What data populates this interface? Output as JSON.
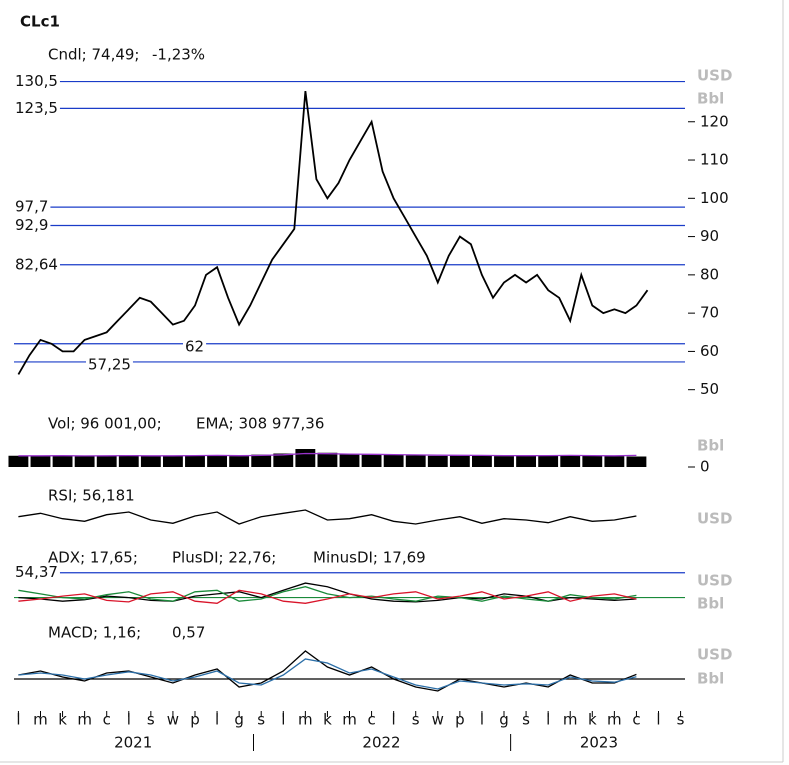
{
  "title": "CLc1",
  "xaxis": {
    "xlim": [
      -0.2,
      30.2
    ],
    "xticks": [
      {
        "value": 0,
        "label": "l"
      },
      {
        "value": 1,
        "label": "m"
      },
      {
        "value": 2,
        "label": "k"
      },
      {
        "value": 3,
        "label": "m"
      },
      {
        "value": 4,
        "label": "c"
      },
      {
        "value": 5,
        "label": "l"
      },
      {
        "value": 6,
        "label": "s"
      },
      {
        "value": 7,
        "label": "w"
      },
      {
        "value": 8,
        "label": "p"
      },
      {
        "value": 9,
        "label": "l"
      },
      {
        "value": 10,
        "label": "g"
      },
      {
        "value": 11,
        "label": "s"
      },
      {
        "value": 12,
        "label": "l"
      },
      {
        "value": 13,
        "label": "m"
      },
      {
        "value": 14,
        "label": "k"
      },
      {
        "value": 15,
        "label": "m"
      },
      {
        "value": 16,
        "label": "c"
      },
      {
        "value": 17,
        "label": "l"
      },
      {
        "value": 18,
        "label": "s"
      },
      {
        "value": 19,
        "label": "w"
      },
      {
        "value": 20,
        "label": "p"
      },
      {
        "value": 21,
        "label": "l"
      },
      {
        "value": 22,
        "label": "g"
      },
      {
        "value": 23,
        "label": "s"
      },
      {
        "value": 24,
        "label": "l"
      },
      {
        "value": 25,
        "label": "m"
      },
      {
        "value": 26,
        "label": "k"
      },
      {
        "value": 27,
        "label": "m"
      },
      {
        "value": 28,
        "label": "c"
      },
      {
        "value": 29,
        "label": "l"
      },
      {
        "value": 30,
        "label": "s"
      }
    ],
    "years": [
      {
        "value": 5.2,
        "label": "2021"
      },
      {
        "value": 16.45,
        "label": "2022"
      },
      {
        "value": 26.3,
        "label": "2023"
      }
    ],
    "separators": [
      10.65,
      22.3
    ]
  },
  "chart_data": [
    {
      "type": "line",
      "units": [
        "USD",
        "Bbl"
      ],
      "change_label": "-1,23%",
      "ylim": [
        46,
        133
      ],
      "yticks": [
        50,
        60,
        70,
        80,
        90,
        100,
        110,
        120
      ],
      "levels": [
        {
          "value": 130.5,
          "label": "130,5"
        },
        {
          "value": 123.5,
          "label": "123,5"
        },
        {
          "value": 97.7,
          "label": "97,7"
        },
        {
          "value": 92.9,
          "label": "92,9"
        },
        {
          "value": 82.64,
          "label": "82,64"
        },
        {
          "value": 62,
          "label": "62"
        },
        {
          "value": 57.25,
          "label": "57,25"
        }
      ],
      "level_color": "#1a3cc8",
      "x": [
        0,
        0.5,
        1,
        1.5,
        2,
        2.5,
        3,
        3.5,
        4,
        4.5,
        5,
        5.5,
        6,
        6.5,
        7,
        7.5,
        8,
        8.5,
        9,
        9.5,
        10,
        10.5,
        11,
        11.5,
        12,
        12.5,
        13,
        13.5,
        14,
        14.5,
        15,
        15.5,
        16,
        16.5,
        17,
        17.5,
        18,
        18.5,
        19,
        19.5,
        20,
        20.5,
        21,
        21.5,
        22,
        22.5,
        23,
        23.5,
        24,
        24.5,
        25,
        25.5,
        26,
        26.5,
        27,
        27.5,
        28,
        28.5
      ],
      "series": [
        {
          "name": "Cndl; 74,49;",
          "color": "#000000",
          "values": [
            54,
            59,
            63,
            62,
            60,
            60,
            63,
            64,
            65,
            68,
            71,
            74,
            73,
            70,
            67,
            68,
            72,
            80,
            82,
            74,
            67,
            72,
            78,
            84,
            88,
            92,
            128,
            105,
            100,
            104,
            110,
            115,
            120,
            107,
            100,
            95,
            90,
            85,
            78,
            85,
            90,
            88,
            80,
            74,
            78,
            80,
            78,
            80,
            76,
            74,
            68,
            80,
            72,
            70,
            71,
            70,
            72,
            76
          ]
        }
      ]
    },
    {
      "type": "bar",
      "units": [
        "Bbl"
      ],
      "ylim": [
        0,
        800000
      ],
      "yticks": [
        0
      ],
      "x": [
        0,
        1,
        2,
        3,
        4,
        5,
        6,
        7,
        8,
        9,
        10,
        11,
        12,
        13,
        14,
        15,
        16,
        17,
        18,
        19,
        20,
        21,
        22,
        23,
        24,
        25,
        26,
        27,
        28
      ],
      "series": [
        {
          "name": "Vol; 96 001,00;",
          "color": "#000000",
          "values": [
            300000,
            290000,
            310000,
            280000,
            300000,
            320000,
            290000,
            300000,
            310000,
            320000,
            290000,
            330000,
            360000,
            480000,
            380000,
            340000,
            330000,
            320000,
            310000,
            300000,
            310000,
            300000,
            290000,
            300000,
            310000,
            320000,
            300000,
            290000,
            280000
          ]
        },
        {
          "name": "EMA; 308 977,36",
          "color": "#9933cc",
          "style": "line",
          "values": [
            300000,
            298000,
            302000,
            295000,
            298000,
            305000,
            300000,
            300000,
            304000,
            308000,
            302000,
            310000,
            325000,
            360000,
            355000,
            345000,
            338000,
            330000,
            322000,
            315000,
            313000,
            309000,
            303000,
            302000,
            304000,
            308000,
            305000,
            300000,
            309000
          ]
        }
      ]
    },
    {
      "type": "line",
      "units": [
        "USD"
      ],
      "ylim": [
        20,
        80
      ],
      "yticks": [],
      "x": [
        0,
        1,
        2,
        3,
        4,
        5,
        6,
        7,
        8,
        9,
        10,
        11,
        12,
        13,
        14,
        15,
        16,
        17,
        18,
        19,
        20,
        21,
        22,
        23,
        24,
        25,
        26,
        27,
        28
      ],
      "series": [
        {
          "name": "RSI; 56,181",
          "color": "#000000",
          "values": [
            55,
            60,
            52,
            48,
            58,
            62,
            50,
            45,
            56,
            62,
            44,
            55,
            60,
            65,
            50,
            52,
            58,
            48,
            44,
            50,
            55,
            45,
            52,
            50,
            46,
            55,
            48,
            50,
            56
          ]
        }
      ]
    },
    {
      "type": "line",
      "units": [
        "USD",
        "Bbl"
      ],
      "ylim": [
        0,
        72
      ],
      "yticks": [],
      "levels": [
        {
          "value": 54.37,
          "label": "54,37"
        }
      ],
      "level_color": "#1a3cc8",
      "reference_line": 20,
      "reference_color": "#1a8a3a",
      "x": [
        0,
        1,
        2,
        3,
        4,
        5,
        6,
        7,
        8,
        9,
        10,
        11,
        12,
        13,
        14,
        15,
        16,
        17,
        18,
        19,
        20,
        21,
        22,
        23,
        24,
        25,
        26,
        27,
        28
      ],
      "series": [
        {
          "name": "ADX; 17,65;",
          "color": "#000000",
          "values": [
            20,
            18,
            15,
            17,
            22,
            20,
            16,
            15,
            22,
            25,
            28,
            20,
            30,
            40,
            35,
            25,
            18,
            15,
            14,
            16,
            20,
            18,
            25,
            22,
            15,
            20,
            18,
            16,
            18
          ]
        },
        {
          "name": "PlusDI; 22,76;",
          "color": "#1a8a3a",
          "values": [
            30,
            25,
            20,
            18,
            24,
            28,
            18,
            15,
            28,
            30,
            15,
            18,
            28,
            35,
            25,
            20,
            22,
            18,
            15,
            22,
            20,
            15,
            22,
            18,
            15,
            24,
            20,
            18,
            23
          ]
        },
        {
          "name": "MinusDI; 17,69",
          "color": "#d9142a",
          "values": [
            15,
            18,
            22,
            25,
            16,
            14,
            25,
            28,
            15,
            12,
            30,
            25,
            15,
            12,
            18,
            25,
            20,
            25,
            28,
            18,
            22,
            28,
            18,
            22,
            28,
            15,
            22,
            25,
            18
          ]
        }
      ]
    },
    {
      "type": "line",
      "units": [
        "USD",
        "Bbl"
      ],
      "ylim": [
        -4,
        9
      ],
      "yticks": [],
      "reference_line": 0,
      "reference_color": "#000000",
      "x": [
        0,
        1,
        2,
        3,
        4,
        5,
        6,
        7,
        8,
        9,
        10,
        11,
        12,
        13,
        14,
        15,
        16,
        17,
        18,
        19,
        20,
        21,
        22,
        23,
        24,
        25,
        26,
        27,
        28
      ],
      "series": [
        {
          "name": "MACD; 1,16;",
          "color": "#000000",
          "values": [
            1,
            2,
            0.5,
            -0.5,
            1.5,
            2,
            0.5,
            -1,
            1,
            2.5,
            -2,
            -1,
            2,
            7,
            3,
            1,
            3,
            0,
            -2,
            -3,
            0,
            -1,
            -2,
            -1,
            -2,
            1,
            -1,
            -1,
            1.16
          ]
        },
        {
          "name": "0,57",
          "color": "#2c6fa8",
          "values": [
            1,
            1.5,
            1,
            0,
            1,
            1.8,
            1,
            -0.5,
            0.5,
            2,
            -1,
            -1.5,
            1,
            5,
            4,
            1.5,
            2.5,
            0.5,
            -1.5,
            -2.5,
            -0.5,
            -1,
            -1.5,
            -1.2,
            -1.5,
            0.5,
            -0.5,
            -0.8,
            0.57
          ]
        }
      ]
    }
  ]
}
